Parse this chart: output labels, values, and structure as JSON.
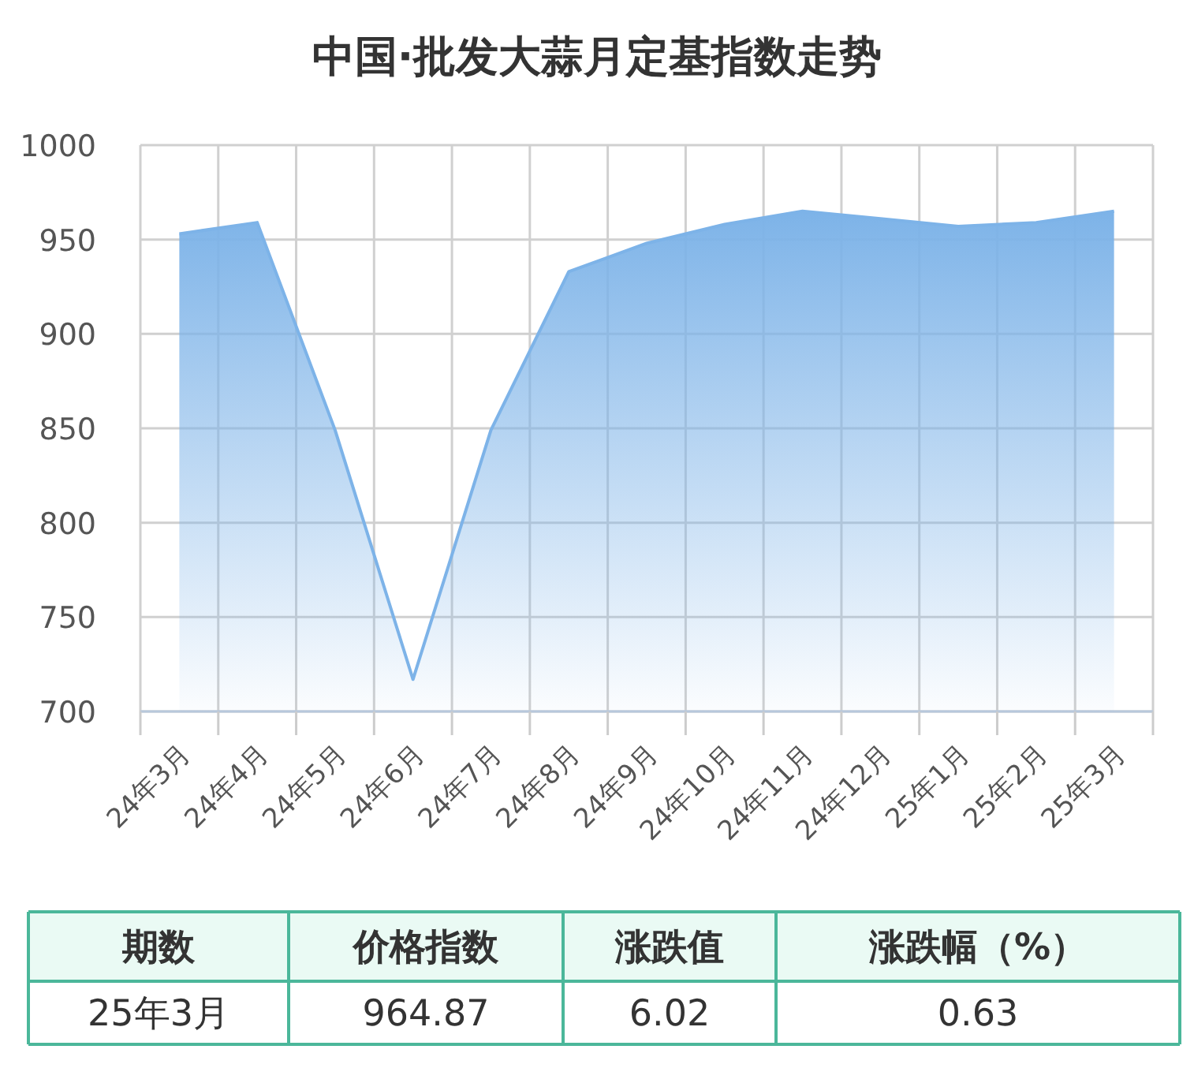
{
  "chart_data": {
    "type": "area",
    "title": "中国·批发大蒜月定基指数走势",
    "categories": [
      "24年3月",
      "24年4月",
      "24年5月",
      "24年6月",
      "24年7月",
      "24年8月",
      "24年9月",
      "24年10月",
      "24年11月",
      "24年12月",
      "25年1月",
      "25年2月",
      "25年3月"
    ],
    "series": [
      {
        "color": "#7db3e8",
        "values": [
          953,
          959,
          849,
          717,
          849,
          933,
          948,
          958,
          965,
          961,
          957,
          959,
          965
        ]
      }
    ],
    "ylim": [
      700,
      1000
    ],
    "yticks": [
      700,
      750,
      800,
      850,
      900,
      950,
      1000
    ],
    "grid": true,
    "annotations": [
      "期数",
      "价格指数",
      "涨跌值",
      "涨跌幅（%）",
      "25年3月",
      "964.87",
      "6.02",
      "0.63"
    ]
  }
}
